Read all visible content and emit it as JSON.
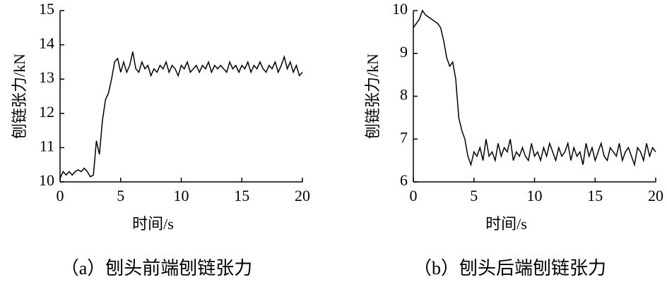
{
  "chart_data": [
    {
      "type": "line",
      "y_label": "刨链张力/kN",
      "x_label": "时间/s",
      "caption": "（a）刨头前端刨链张力",
      "color": "#000000",
      "x": [
        0,
        0.25,
        0.5,
        0.75,
        1,
        1.25,
        1.5,
        1.75,
        2,
        2.25,
        2.5,
        2.75,
        3,
        3.25,
        3.5,
        3.75,
        4,
        4.25,
        4.5,
        4.75,
        5,
        5.25,
        5.5,
        5.75,
        6,
        6.25,
        6.5,
        6.75,
        7,
        7.25,
        7.5,
        7.75,
        8,
        8.25,
        8.5,
        8.75,
        9,
        9.25,
        9.5,
        9.75,
        10,
        10.25,
        10.5,
        10.75,
        11,
        11.25,
        11.5,
        11.75,
        12,
        12.25,
        12.5,
        12.75,
        13,
        13.25,
        13.5,
        13.75,
        14,
        14.25,
        14.5,
        14.75,
        15,
        15.25,
        15.5,
        15.75,
        16,
        16.25,
        16.5,
        16.75,
        17,
        17.25,
        17.5,
        17.75,
        18,
        18.25,
        18.5,
        18.75,
        19,
        19.25,
        19.5,
        19.75,
        20
      ],
      "values": [
        10.1,
        10.3,
        10.2,
        10.3,
        10.2,
        10.3,
        10.35,
        10.3,
        10.4,
        10.3,
        10.15,
        10.2,
        11.2,
        10.8,
        11.8,
        12.4,
        12.6,
        13.0,
        13.5,
        13.6,
        13.2,
        13.5,
        13.2,
        13.4,
        13.8,
        13.3,
        13.2,
        13.5,
        13.3,
        13.4,
        13.1,
        13.3,
        13.2,
        13.4,
        13.3,
        13.5,
        13.2,
        13.4,
        13.3,
        13.1,
        13.4,
        13.3,
        13.5,
        13.2,
        13.3,
        13.4,
        13.2,
        13.4,
        13.3,
        13.5,
        13.2,
        13.4,
        13.3,
        13.4,
        13.3,
        13.2,
        13.5,
        13.3,
        13.4,
        13.2,
        13.4,
        13.3,
        13.5,
        13.2,
        13.4,
        13.3,
        13.5,
        13.3,
        13.2,
        13.4,
        13.3,
        13.5,
        13.2,
        13.4,
        13.65,
        13.3,
        13.5,
        13.2,
        13.4,
        13.1,
        13.2
      ],
      "xlim": [
        0,
        20
      ],
      "ylim": [
        10,
        15
      ],
      "xticks": [
        0,
        5,
        10,
        15,
        20
      ],
      "yticks": [
        10,
        11,
        12,
        13,
        14,
        15
      ]
    },
    {
      "type": "line",
      "y_label": "刨链张力/kN",
      "x_label": "时间/s",
      "caption": "（b）刨头后端刨链张力",
      "color": "#000000",
      "x": [
        0,
        0.25,
        0.5,
        0.75,
        1,
        1.25,
        1.5,
        1.75,
        2,
        2.25,
        2.5,
        2.75,
        3,
        3.25,
        3.5,
        3.75,
        4,
        4.25,
        4.5,
        4.75,
        5,
        5.25,
        5.5,
        5.75,
        6,
        6.25,
        6.5,
        6.75,
        7,
        7.25,
        7.5,
        7.75,
        8,
        8.25,
        8.5,
        8.75,
        9,
        9.25,
        9.5,
        9.75,
        10,
        10.25,
        10.5,
        10.75,
        11,
        11.25,
        11.5,
        11.75,
        12,
        12.25,
        12.5,
        12.75,
        13,
        13.25,
        13.5,
        13.75,
        14,
        14.25,
        14.5,
        14.75,
        15,
        15.25,
        15.5,
        15.75,
        16,
        16.25,
        16.5,
        16.75,
        17,
        17.25,
        17.5,
        17.75,
        18,
        18.25,
        18.5,
        18.75,
        19,
        19.25,
        19.5,
        19.75,
        20
      ],
      "values": [
        9.6,
        9.7,
        9.8,
        10.0,
        9.9,
        9.85,
        9.8,
        9.75,
        9.7,
        9.6,
        9.3,
        8.9,
        8.7,
        8.8,
        8.4,
        7.5,
        7.2,
        7.0,
        6.6,
        6.4,
        6.7,
        6.6,
        6.8,
        6.5,
        7.0,
        6.6,
        6.7,
        6.5,
        6.9,
        6.6,
        6.8,
        6.7,
        7.0,
        6.5,
        6.7,
        6.6,
        6.8,
        6.6,
        6.5,
        6.9,
        6.6,
        6.7,
        6.5,
        6.8,
        6.6,
        6.9,
        6.7,
        6.5,
        6.8,
        6.6,
        6.7,
        6.9,
        6.5,
        6.8,
        6.6,
        6.7,
        6.4,
        6.9,
        6.6,
        6.8,
        6.5,
        6.7,
        6.9,
        6.6,
        6.5,
        6.8,
        6.7,
        6.6,
        6.9,
        6.5,
        6.7,
        6.8,
        6.6,
        6.4,
        6.8,
        6.7,
        6.5,
        6.9,
        6.6,
        6.8,
        6.7
      ],
      "xlim": [
        0,
        20
      ],
      "ylim": [
        6,
        10
      ],
      "xticks": [
        0,
        5,
        10,
        15,
        20
      ],
      "yticks": [
        6,
        7,
        8,
        9,
        10
      ]
    }
  ]
}
